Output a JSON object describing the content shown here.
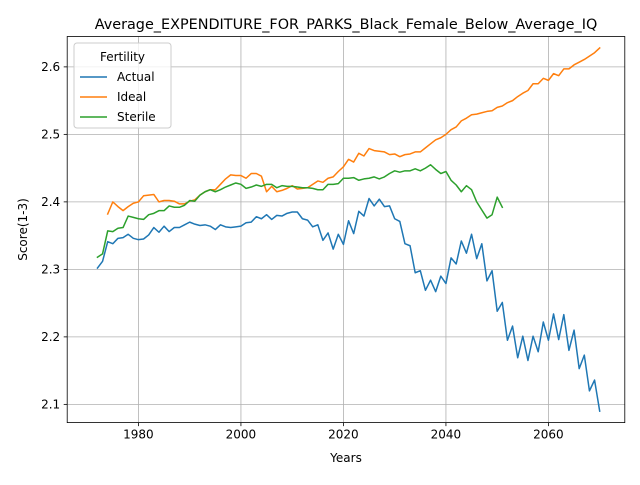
{
  "chart_data": {
    "type": "line",
    "title": "Average_EXPENDITURE_FOR_PARKS_Black_Female_Below_Average_IQ",
    "xlabel": "Years",
    "ylabel": "Score(1-3)",
    "xlim": [
      1966.1,
      2074.9
    ],
    "ylim": [
      2.073,
      2.645
    ],
    "x_ticks": [
      1980,
      2000,
      2020,
      2040,
      2060
    ],
    "x_tick_labels": [
      "1980",
      "2000",
      "2020",
      "2040",
      "2060"
    ],
    "y_ticks": [
      2.1,
      2.2,
      2.3,
      2.4,
      2.5,
      2.6
    ],
    "y_tick_labels": [
      "2.1",
      "2.2",
      "2.3",
      "2.4",
      "2.5",
      "2.6"
    ],
    "grid": true,
    "legend": {
      "title": "Fertility",
      "placement": "top-left"
    },
    "series": [
      {
        "name": "Actual",
        "color": "#1f77b4",
        "x_start": 1972,
        "values": [
          2.302,
          2.312,
          2.341,
          2.338,
          2.346,
          2.347,
          2.352,
          2.346,
          2.344,
          2.345,
          2.351,
          2.362,
          2.355,
          2.364,
          2.356,
          2.362,
          2.362,
          2.366,
          2.37,
          2.367,
          2.365,
          2.366,
          2.364,
          2.359,
          2.366,
          2.363,
          2.362,
          2.363,
          2.364,
          2.369,
          2.37,
          2.378,
          2.375,
          2.381,
          2.374,
          2.38,
          2.379,
          2.383,
          2.385,
          2.385,
          2.375,
          2.373,
          2.363,
          2.366,
          2.343,
          2.354,
          2.33,
          2.352,
          2.337,
          2.372,
          2.353,
          2.386,
          2.379,
          2.405,
          2.394,
          2.404,
          2.393,
          2.394,
          2.375,
          2.371,
          2.338,
          2.335,
          2.295,
          2.298,
          2.269,
          2.284,
          2.267,
          2.29,
          2.279,
          2.317,
          2.308,
          2.342,
          2.324,
          2.352,
          2.316,
          2.338,
          2.283,
          2.298,
          2.238,
          2.251,
          2.195,
          2.216,
          2.169,
          2.201,
          2.165,
          2.201,
          2.178,
          2.222,
          2.195,
          2.234,
          2.196,
          2.233,
          2.18,
          2.21,
          2.153,
          2.173,
          2.12,
          2.136,
          2.09
        ]
      },
      {
        "name": "Ideal",
        "color": "#ff7f0e",
        "x_start": 1974,
        "values": [
          2.382,
          2.4,
          2.393,
          2.387,
          2.393,
          2.398,
          2.4,
          2.409,
          2.41,
          2.411,
          2.4,
          2.402,
          2.402,
          2.401,
          2.397,
          2.397,
          2.401,
          2.403,
          2.41,
          2.415,
          2.418,
          2.418,
          2.426,
          2.434,
          2.44,
          2.439,
          2.439,
          2.435,
          2.442,
          2.442,
          2.438,
          2.415,
          2.423,
          2.415,
          2.417,
          2.42,
          2.424,
          2.419,
          2.42,
          2.421,
          2.426,
          2.431,
          2.429,
          2.435,
          2.437,
          2.445,
          2.452,
          2.463,
          2.459,
          2.472,
          2.468,
          2.479,
          2.476,
          2.475,
          2.474,
          2.47,
          2.471,
          2.467,
          2.47,
          2.471,
          2.474,
          2.474,
          2.48,
          2.486,
          2.492,
          2.495,
          2.5,
          2.507,
          2.511,
          2.52,
          2.524,
          2.529,
          2.53,
          2.532,
          2.534,
          2.535,
          2.54,
          2.542,
          2.547,
          2.55,
          2.556,
          2.561,
          2.565,
          2.575,
          2.575,
          2.583,
          2.58,
          2.59,
          2.587,
          2.597,
          2.597,
          2.603,
          2.607,
          2.611,
          2.616,
          2.621,
          2.628
        ]
      },
      {
        "name": "Sterile",
        "color": "#2ca02c",
        "x_start": 1972,
        "values": [
          2.318,
          2.323,
          2.357,
          2.356,
          2.361,
          2.362,
          2.379,
          2.377,
          2.375,
          2.374,
          2.381,
          2.383,
          2.387,
          2.387,
          2.394,
          2.392,
          2.392,
          2.395,
          2.402,
          2.401,
          2.41,
          2.415,
          2.418,
          2.415,
          2.418,
          2.422,
          2.425,
          2.428,
          2.426,
          2.42,
          2.422,
          2.425,
          2.423,
          2.426,
          2.426,
          2.421,
          2.424,
          2.423,
          2.423,
          2.422,
          2.421,
          2.421,
          2.42,
          2.418,
          2.418,
          2.426,
          2.426,
          2.427,
          2.435,
          2.435,
          2.436,
          2.432,
          2.434,
          2.435,
          2.437,
          2.434,
          2.437,
          2.442,
          2.446,
          2.444,
          2.446,
          2.446,
          2.449,
          2.446,
          2.45,
          2.455,
          2.448,
          2.442,
          2.445,
          2.432,
          2.425,
          2.415,
          2.424,
          2.418,
          2.4,
          2.388,
          2.376,
          2.381,
          2.407,
          2.392
        ]
      }
    ]
  }
}
